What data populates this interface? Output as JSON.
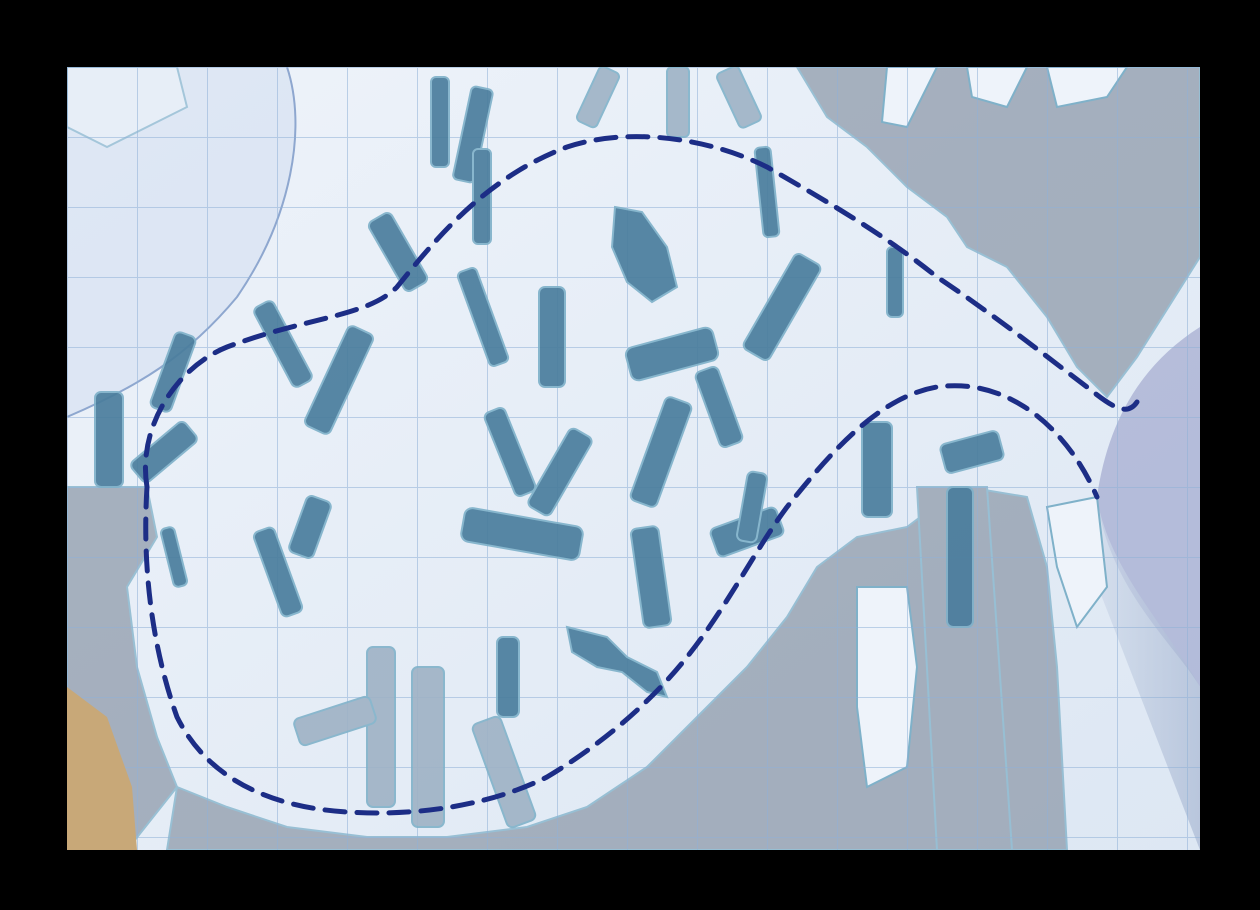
{
  "map": {
    "colors": {
      "frame": "#000000",
      "ice": "#eef3fa",
      "ice_shade": "#dde7f3",
      "grid": "#8fb1d6",
      "dark_region": "#8f9bab",
      "blade": "#4a7d9c",
      "blade_outline": "#7fb1c9",
      "pale_blade": "#9eb2c4",
      "dashed_outline": "#1c2d86",
      "wood": "#c8a878"
    },
    "layers": [
      "grid",
      "ice-sheet",
      "dark-regions",
      "ice-blades",
      "dashed-outlines"
    ],
    "visible_text": []
  }
}
